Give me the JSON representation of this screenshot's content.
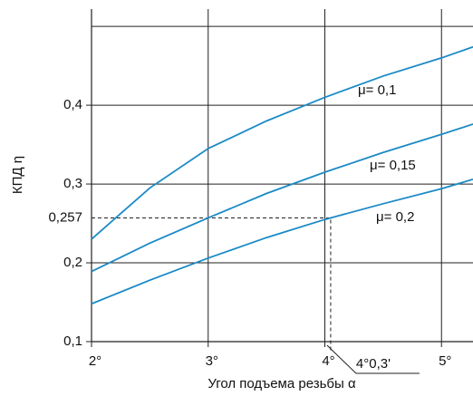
{
  "chart_data": {
    "type": "line",
    "y_label": "КПД η",
    "x_label": "Угол подъема резьбы α",
    "x": [
      2,
      2.5,
      3,
      3.5,
      4,
      4.5,
      5,
      5.27
    ],
    "series": [
      {
        "name": "μ= 0,1",
        "color": "#1a8ac6",
        "values": [
          0.23,
          0.295,
          0.345,
          0.38,
          0.41,
          0.437,
          0.46,
          0.474
        ]
      },
      {
        "name": "μ= 0,15",
        "color": "#1a8ac6",
        "values": [
          0.189,
          0.225,
          0.257,
          0.288,
          0.315,
          0.34,
          0.363,
          0.376
        ]
      },
      {
        "name": "μ= 0,2",
        "color": "#1a8ac6",
        "values": [
          0.148,
          0.178,
          0.206,
          0.232,
          0.255,
          0.275,
          0.294,
          0.306
        ]
      }
    ],
    "xlim": [
      2,
      5.27
    ],
    "ylim": [
      0.1,
      0.522
    ],
    "xticks": [
      {
        "value": 2,
        "label": "2°"
      },
      {
        "value": 3,
        "label": "3°"
      },
      {
        "value": 4,
        "label": "4°"
      },
      {
        "value": 5,
        "label": "5°"
      }
    ],
    "yticks": [
      {
        "value": 0.1,
        "label": "0,1"
      },
      {
        "value": 0.2,
        "label": "0,2"
      },
      {
        "value": 0.3,
        "label": "0,3"
      },
      {
        "value": 0.4,
        "label": "0,4"
      }
    ],
    "ygrid": [
      0.1,
      0.2,
      0.3,
      0.4,
      0.5
    ],
    "grid": true,
    "reference": {
      "x": 4.05,
      "y": 0.257,
      "y_label": "0,257",
      "x_label": "4°0,3'"
    }
  }
}
